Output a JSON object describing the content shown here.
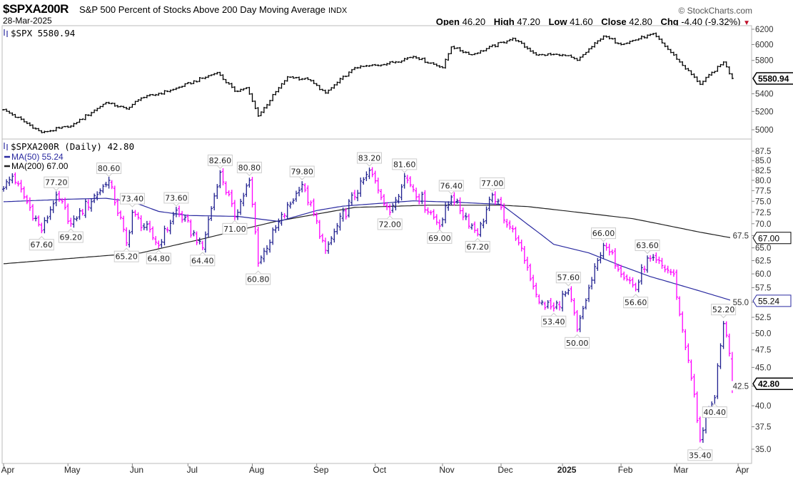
{
  "header": {
    "symbol": "$SPXA200R",
    "name": "S&P 500 Percent of Stocks Above 200 Day Moving Average",
    "exchange": "INDX",
    "date": "28-Mar-2025",
    "copyright": "© StockCharts.com",
    "open_label": "Open",
    "open": "46.20",
    "high_label": "High",
    "high": "47.20",
    "low_label": "Low",
    "low": "41.60",
    "close_label": "Close",
    "close": "42.80",
    "chg_label": "Chg",
    "chg": "-4.40 (-9.32%)"
  },
  "colors": {
    "up": "#1f1f8f",
    "down": "#ff00ff",
    "ma50": "#2a2aa0",
    "ma200": "#222222",
    "price": "#000000"
  },
  "chart_data": [
    {
      "type": "ohlc",
      "title": "$SPX 5580.94",
      "legend": "$SPX 5580.94",
      "last_value_tag": "5580.94",
      "y_scale": "log",
      "ylim": [
        4900,
        6250
      ],
      "y_ticks": [
        "6200",
        "6000",
        "5800",
        "5400",
        "5200",
        "5000"
      ],
      "keypoints": [
        [
          "2024-04-01",
          5220
        ],
        [
          "2024-04-18",
          4970
        ],
        [
          "2024-05-02",
          5040
        ],
        [
          "2024-05-20",
          5300
        ],
        [
          "2024-05-30",
          5230
        ],
        [
          "2024-06-06",
          5350
        ],
        [
          "2024-06-24",
          5450
        ],
        [
          "2024-07-16",
          5650
        ],
        [
          "2024-07-24",
          5430
        ],
        [
          "2024-07-30",
          5470
        ],
        [
          "2024-08-05",
          5150
        ],
        [
          "2024-08-19",
          5600
        ],
        [
          "2024-08-28",
          5570
        ],
        [
          "2024-09-06",
          5410
        ],
        [
          "2024-09-20",
          5710
        ],
        [
          "2024-10-04",
          5750
        ],
        [
          "2024-10-18",
          5850
        ],
        [
          "2024-11-01",
          5710
        ],
        [
          "2024-11-06",
          5970
        ],
        [
          "2024-11-15",
          5870
        ],
        [
          "2024-12-06",
          6080
        ],
        [
          "2024-12-18",
          5870
        ],
        [
          "2025-01-02",
          5870
        ],
        [
          "2025-01-10",
          5800
        ],
        [
          "2025-01-24",
          6110
        ],
        [
          "2025-02-03",
          6000
        ],
        [
          "2025-02-19",
          6140
        ],
        [
          "2025-03-04",
          5780
        ],
        [
          "2025-03-13",
          5510
        ],
        [
          "2025-03-25",
          5780
        ],
        [
          "2025-03-28",
          5580.94
        ]
      ]
    },
    {
      "type": "ohlc",
      "title": "$SPXA200R (Daily) 42.80",
      "legend": [
        "$SPXA200R (Daily) 42.80",
        "MA(50) 55.24",
        "MA(200) 67.00"
      ],
      "last_value_tags": {
        "close": "42.80",
        "ma50": "55.24",
        "ma200": "67.00"
      },
      "y_scale": "log",
      "ylim": [
        34,
        89
      ],
      "y_ticks": [
        "87.5",
        "85.0",
        "82.5",
        "80.0",
        "77.5",
        "75.0",
        "72.5",
        "70.0",
        "67.5",
        "65.0",
        "62.5",
        "60.0",
        "57.5",
        "55.0",
        "52.5",
        "50.0",
        "47.5",
        "45.0",
        "42.5",
        "40.0",
        "37.5",
        "35.0"
      ],
      "keypoints": [
        [
          "2024-04-01",
          78
        ],
        [
          "2024-04-04",
          81
        ],
        [
          "2024-04-18",
          68.5
        ],
        [
          "2024-04-25",
          76.5
        ],
        [
          "2024-05-02",
          70
        ],
        [
          "2024-05-21",
          80
        ],
        [
          "2024-05-30",
          66
        ],
        [
          "2024-06-03",
          72.5
        ],
        [
          "2024-06-14",
          65.5
        ],
        [
          "2024-06-25",
          73
        ],
        [
          "2024-07-09",
          65
        ],
        [
          "2024-07-17",
          82
        ],
        [
          "2024-07-24",
          71.5
        ],
        [
          "2024-07-31",
          80
        ],
        [
          "2024-08-05",
          62
        ],
        [
          "2024-08-26",
          79
        ],
        [
          "2024-09-06",
          64.5
        ],
        [
          "2024-09-27",
          82.5
        ],
        [
          "2024-10-08",
          72.5
        ],
        [
          "2024-10-15",
          81
        ],
        [
          "2024-10-31",
          69.5
        ],
        [
          "2024-11-06",
          76
        ],
        [
          "2024-11-19",
          67.8
        ],
        [
          "2024-11-26",
          76.5
        ],
        [
          "2024-12-10",
          66
        ],
        [
          "2024-12-19",
          55
        ],
        [
          "2024-12-27",
          54
        ],
        [
          "2025-01-06",
          57
        ],
        [
          "2025-01-10",
          50.5
        ],
        [
          "2025-01-24",
          65.5
        ],
        [
          "2025-02-10",
          57.2
        ],
        [
          "2025-02-14",
          63
        ],
        [
          "2025-02-28",
          60
        ],
        [
          "2025-03-04",
          53
        ],
        [
          "2025-03-07",
          46
        ],
        [
          "2025-03-13",
          36
        ],
        [
          "2025-03-20",
          41
        ],
        [
          "2025-03-25",
          51.5
        ],
        [
          "2025-03-27",
          47
        ],
        [
          "2025-03-28",
          42.8
        ]
      ],
      "last_bar": {
        "open": 46.2,
        "high": 47.2,
        "low": 41.6,
        "close": 42.8
      },
      "ma50": [
        [
          "2024-04-01",
          74.9
        ],
        [
          "2024-05-02",
          75.5
        ],
        [
          "2024-05-20",
          75.7
        ],
        [
          "2024-06-03",
          74.9
        ],
        [
          "2024-06-14",
          72.7
        ],
        [
          "2024-07-01",
          71.8
        ],
        [
          "2024-07-25",
          71.6
        ],
        [
          "2024-08-14",
          70.5
        ],
        [
          "2024-09-03",
          72.9
        ],
        [
          "2024-09-16",
          73.9
        ],
        [
          "2024-10-18",
          75.1
        ],
        [
          "2024-11-07",
          74.8
        ],
        [
          "2024-12-02",
          74.3
        ],
        [
          "2024-12-13",
          69.9
        ],
        [
          "2024-12-27",
          65.7
        ],
        [
          "2025-01-16",
          64.0
        ],
        [
          "2025-02-03",
          61.5
        ],
        [
          "2025-02-18",
          59.5
        ],
        [
          "2025-03-28",
          55.24
        ]
      ],
      "ma200": [
        [
          "2024-04-01",
          61.9
        ],
        [
          "2024-06-06",
          64.0
        ],
        [
          "2024-07-09",
          66.8
        ],
        [
          "2024-08-13",
          70.5
        ],
        [
          "2024-09-20",
          73.6
        ],
        [
          "2024-10-25",
          74.1
        ],
        [
          "2024-12-02",
          74.1
        ],
        [
          "2024-12-13",
          73.8
        ],
        [
          "2025-01-02",
          72.9
        ],
        [
          "2025-02-07",
          71.1
        ],
        [
          "2025-03-13",
          68.2
        ],
        [
          "2025-03-28",
          67.0
        ]
      ],
      "annotations": [
        {
          "date": "2024-04-18",
          "text": "67.60",
          "value": 67.6,
          "side": "below"
        },
        {
          "date": "2024-04-25",
          "text": "77.20",
          "value": 77.2,
          "side": "above"
        },
        {
          "date": "2024-05-02",
          "text": "69.20",
          "value": 69.2,
          "side": "below"
        },
        {
          "date": "2024-05-21",
          "text": "80.60",
          "value": 80.6,
          "side": "above"
        },
        {
          "date": "2024-05-30",
          "text": "65.20",
          "value": 65.2,
          "side": "below"
        },
        {
          "date": "2024-06-03",
          "text": "73.40",
          "value": 73.4,
          "side": "above"
        },
        {
          "date": "2024-06-14",
          "text": "64.80",
          "value": 64.8,
          "side": "below"
        },
        {
          "date": "2024-06-25",
          "text": "73.60",
          "value": 73.6,
          "side": "above"
        },
        {
          "date": "2024-07-09",
          "text": "64.40",
          "value": 64.4,
          "side": "below"
        },
        {
          "date": "2024-07-17",
          "text": "82.60",
          "value": 82.6,
          "side": "above"
        },
        {
          "date": "2024-07-24",
          "text": "71.00",
          "value": 71.0,
          "side": "below"
        },
        {
          "date": "2024-07-31",
          "text": "80.80",
          "value": 80.8,
          "side": "above"
        },
        {
          "date": "2024-08-05",
          "text": "60.80",
          "value": 60.8,
          "side": "below"
        },
        {
          "date": "2024-08-26",
          "text": "79.80",
          "value": 79.8,
          "side": "above"
        },
        {
          "date": "2024-09-27",
          "text": "83.20",
          "value": 83.2,
          "side": "above"
        },
        {
          "date": "2024-10-08",
          "text": "72.00",
          "value": 72.0,
          "side": "below"
        },
        {
          "date": "2024-10-15",
          "text": "81.60",
          "value": 81.6,
          "side": "above"
        },
        {
          "date": "2024-10-31",
          "text": "69.00",
          "value": 69.0,
          "side": "below"
        },
        {
          "date": "2024-11-06",
          "text": "76.40",
          "value": 76.4,
          "side": "above"
        },
        {
          "date": "2024-11-19",
          "text": "67.20",
          "value": 67.2,
          "side": "below"
        },
        {
          "date": "2024-11-26",
          "text": "77.00",
          "value": 77.0,
          "side": "above"
        },
        {
          "date": "2024-12-27",
          "text": "53.40",
          "value": 53.4,
          "side": "below"
        },
        {
          "date": "2025-01-06",
          "text": "57.60",
          "value": 57.6,
          "side": "above"
        },
        {
          "date": "2025-01-10",
          "text": "50.00",
          "value": 50.0,
          "side": "below"
        },
        {
          "date": "2025-01-24",
          "text": "66.00",
          "value": 66.0,
          "side": "above"
        },
        {
          "date": "2025-02-10",
          "text": "56.60",
          "value": 56.6,
          "side": "below"
        },
        {
          "date": "2025-02-14",
          "text": "63.60",
          "value": 63.6,
          "side": "above"
        },
        {
          "date": "2025-03-13",
          "text": "35.40",
          "value": 35.4,
          "side": "below"
        },
        {
          "date": "2025-03-20",
          "text": "40.40",
          "value": 40.4,
          "side": "below"
        },
        {
          "date": "2025-03-25",
          "text": "52.20",
          "value": 52.2,
          "side": "above"
        }
      ]
    }
  ],
  "x_ticks": [
    {
      "label": "Apr",
      "month": "2024-04"
    },
    {
      "label": "May",
      "month": "2024-05"
    },
    {
      "label": "Jun",
      "month": "2024-06"
    },
    {
      "label": "Jul",
      "month": "2024-07"
    },
    {
      "label": "Aug",
      "month": "2024-08"
    },
    {
      "label": "Sep",
      "month": "2024-09"
    },
    {
      "label": "Oct",
      "month": "2024-10"
    },
    {
      "label": "Nov",
      "month": "2024-11"
    },
    {
      "label": "Dec",
      "month": "2024-12"
    },
    {
      "label": "2025",
      "month": "2025-01",
      "bold": true
    },
    {
      "label": "Feb",
      "month": "2025-02"
    },
    {
      "label": "Mar",
      "month": "2025-03"
    },
    {
      "label": "Apr",
      "month": "2025-04"
    }
  ]
}
